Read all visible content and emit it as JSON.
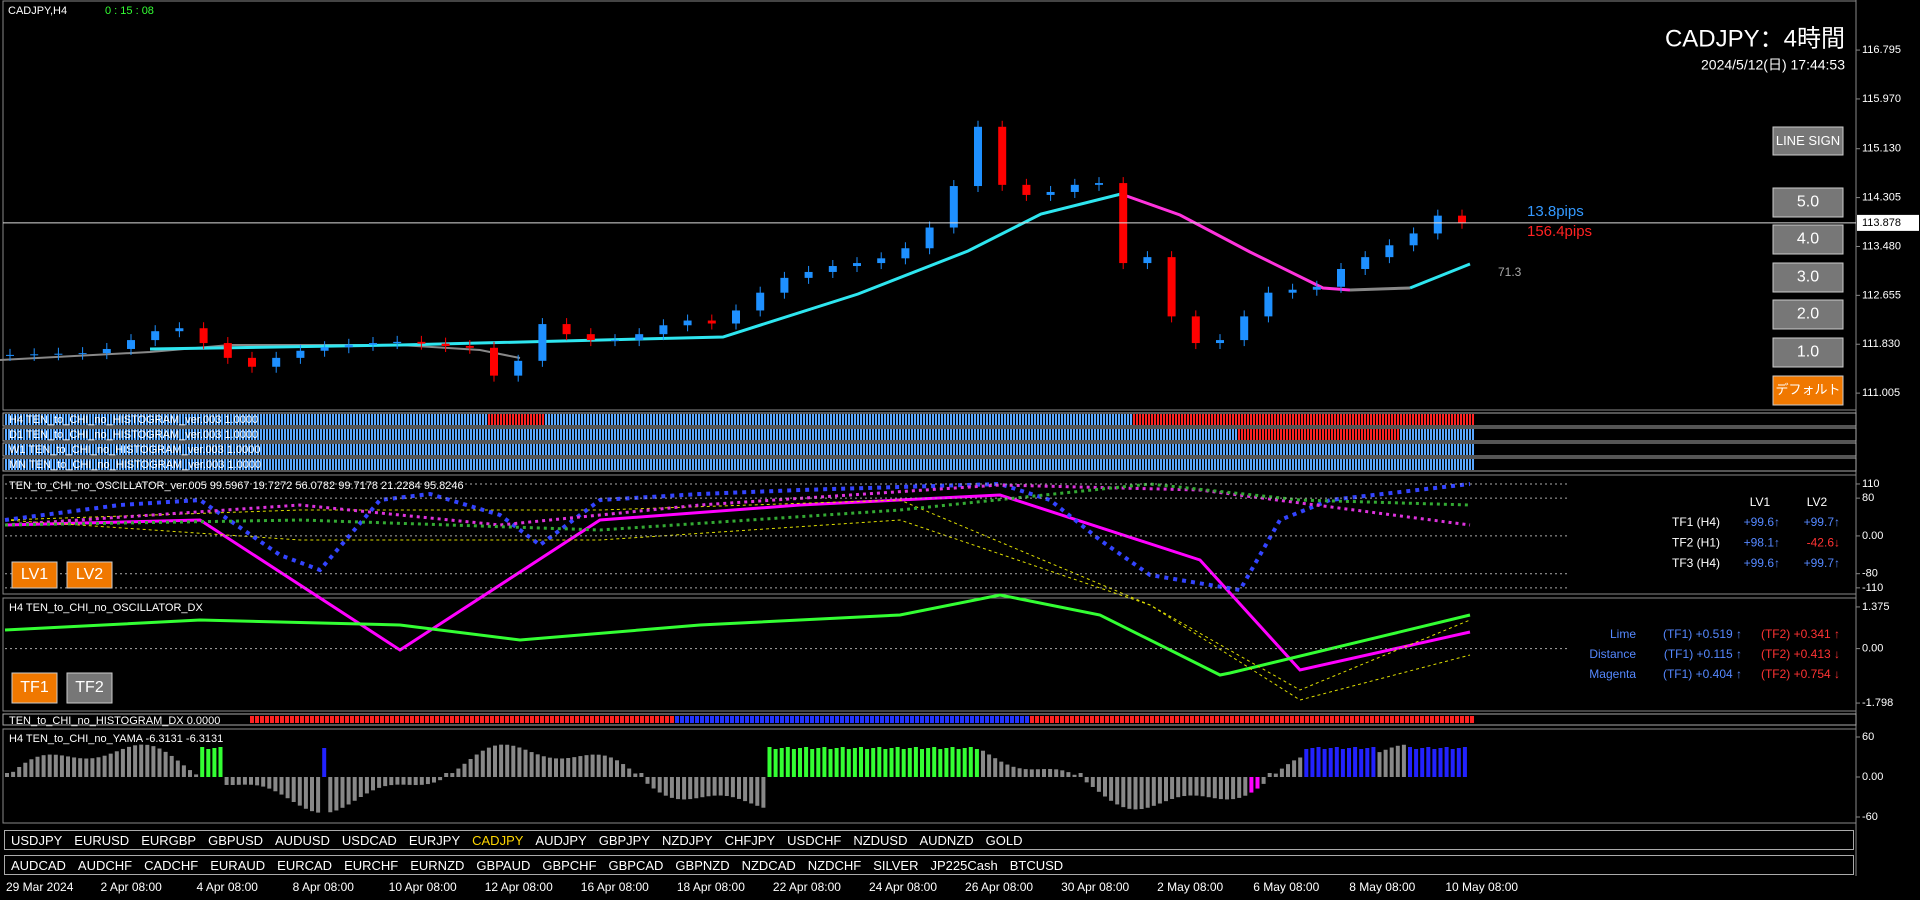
{
  "window": {
    "symbol": "CADJPY,H4",
    "timer": "0 : 15 : 08",
    "title": "CADJPY：4時間",
    "datetime": "2024/5/12(日) 17:44:53"
  },
  "price_axis": {
    "ylim": [
      110.72,
      117.64
    ],
    "ticks": [
      116.795,
      {
        "value": 115.97,
        "label": "115.970"
      },
      {
        "value": 115.13,
        "label": "115.130"
      },
      114.305,
      {
        "value": 113.48,
        "label": "113.480"
      },
      112.655,
      {
        "value": 111.83,
        "label": "111.830"
      },
      111.005
    ],
    "current": 113.878
  },
  "candles": {
    "up_color": "#1e90ff",
    "down_color": "#ff0000",
    "closes": [
      111.65,
      111.66,
      111.67,
      111.68,
      111.75,
      111.9,
      112.05,
      112.1,
      111.85,
      111.6,
      111.45,
      111.6,
      111.72,
      111.78,
      111.82,
      111.85,
      111.87,
      111.84,
      111.8,
      111.77,
      111.3,
      111.55,
      112.17,
      112.0,
      111.9,
      111.9,
      112.0,
      112.15,
      112.23,
      112.18,
      112.4,
      112.7,
      112.95,
      113.05,
      113.15,
      113.2,
      113.28,
      113.45,
      113.8,
      114.5,
      115.5,
      114.52,
      114.35,
      114.4,
      114.52,
      114.55,
      113.2,
      113.3,
      112.3,
      111.85,
      111.9,
      112.3,
      112.7,
      112.75,
      112.8,
      113.1,
      113.3,
      113.5,
      113.7,
      114.0,
      113.88
    ]
  },
  "buttons": [
    "LINE SIGN",
    "5.0",
    "4.0",
    "3.0",
    "2.0",
    "1.0",
    "デフォルト"
  ],
  "pips": {
    "blue": "13.8pips",
    "red": "156.4pips",
    "level": "71.3"
  },
  "histograms": [
    "H4 TEN_to_CHI_no_HISTOGRAM_ver.003 1.0000",
    "D1 TEN_to_CHI_no_HISTOGRAM_ver.003 1.0000",
    "W1 TEN_to_CHI_no_HISTOGRAM_ver.003 1.0000",
    "MN TEN_to_CHI_no_HISTOGRAM_ver.003 1.0000"
  ],
  "oscillator": {
    "title": "TEN_to_CHI_no_OSCILLATOR_ver.005 99.5967 19.7272 56.0782 99.7178 21.2284 95.8246",
    "ylim": [
      -123,
      129
    ],
    "ticks": [
      110,
      80,
      {
        "value": 0,
        "label": "0.00"
      },
      -80,
      -110
    ],
    "buttons": [
      "LV1",
      "LV2"
    ],
    "header": [
      "LV1",
      "LV2"
    ],
    "rows": [
      {
        "label": "TF1 (H4)",
        "lv1": "+99.6↑",
        "lv2": "+99.7↑"
      },
      {
        "label": "TF2 (H1)",
        "lv1": "+98.1↑",
        "lv2": "-42.6↓"
      },
      {
        "label": "TF3 (H4)",
        "lv1": "+99.6↑",
        "lv2": "+99.7↑"
      }
    ]
  },
  "dx": {
    "title": "H4 TEN_to_CHI_no_OSCILLATOR_DX",
    "ylim": [
      -2.06,
      1.67
    ],
    "ticks": [
      1.375,
      {
        "value": 0,
        "label": "0.00"
      },
      -1.798
    ],
    "buttons": [
      "TF1",
      "TF2"
    ],
    "rows": [
      {
        "name": "Lime",
        "tf1": "(TF1) +0.519 ↑",
        "tf2": "(TF2) +0.341 ↑"
      },
      {
        "name": "Distance",
        "tf1": "(TF1) +0.115 ↑",
        "tf2": "(TF2) +0.413 ↓"
      },
      {
        "name": "Magenta",
        "tf1": "(TF1) +0.404 ↑",
        "tf2": "(TF2) +0.754 ↓"
      }
    ]
  },
  "hist_dx": "TEN_to_CHI_no_HISTOGRAM_DX 0.0000",
  "yama": {
    "title": "H4 TEN_to_CHI_no_YAMA -6.3131 -6.3131",
    "ylim": [
      -69,
      72
    ],
    "ticks": [
      60,
      {
        "value": 0,
        "label": "0.00"
      },
      -60
    ]
  },
  "symbols_row1": [
    "USDJPY",
    "EURUSD",
    "EURGBP",
    "GBPUSD",
    "AUDUSD",
    "USDCAD",
    "EURJPY",
    "CADJPY",
    "AUDJPY",
    "GBPJPY",
    "NZDJPY",
    "CHFJPY",
    "USDCHF",
    "NZDUSD",
    "AUDNZD",
    "GOLD"
  ],
  "symbols_row2": [
    "AUDCAD",
    "AUDCHF",
    "CADCHF",
    "EURAUD",
    "EURCAD",
    "EURCHF",
    "EURNZD",
    "GBPAUD",
    "GBPCHF",
    "GBPCAD",
    "GBPNZD",
    "NZDCAD",
    "NZDCHF",
    "SILVER",
    "JP225Cash",
    "BTCUSD"
  ],
  "active_symbol": "CADJPY",
  "time_labels": [
    "29 Mar 2024",
    "2 Apr 08:00",
    "4 Apr 08:00",
    "8 Apr 08:00",
    "10 Apr 08:00",
    "12 Apr 08:00",
    "16 Apr 08:00",
    "18 Apr 08:00",
    "22 Apr 08:00",
    "24 Apr 08:00",
    "26 Apr 08:00",
    "30 Apr 08:00",
    "2 May 08:00",
    "6 May 08:00",
    "8 May 08:00",
    "10 May 08:00"
  ]
}
